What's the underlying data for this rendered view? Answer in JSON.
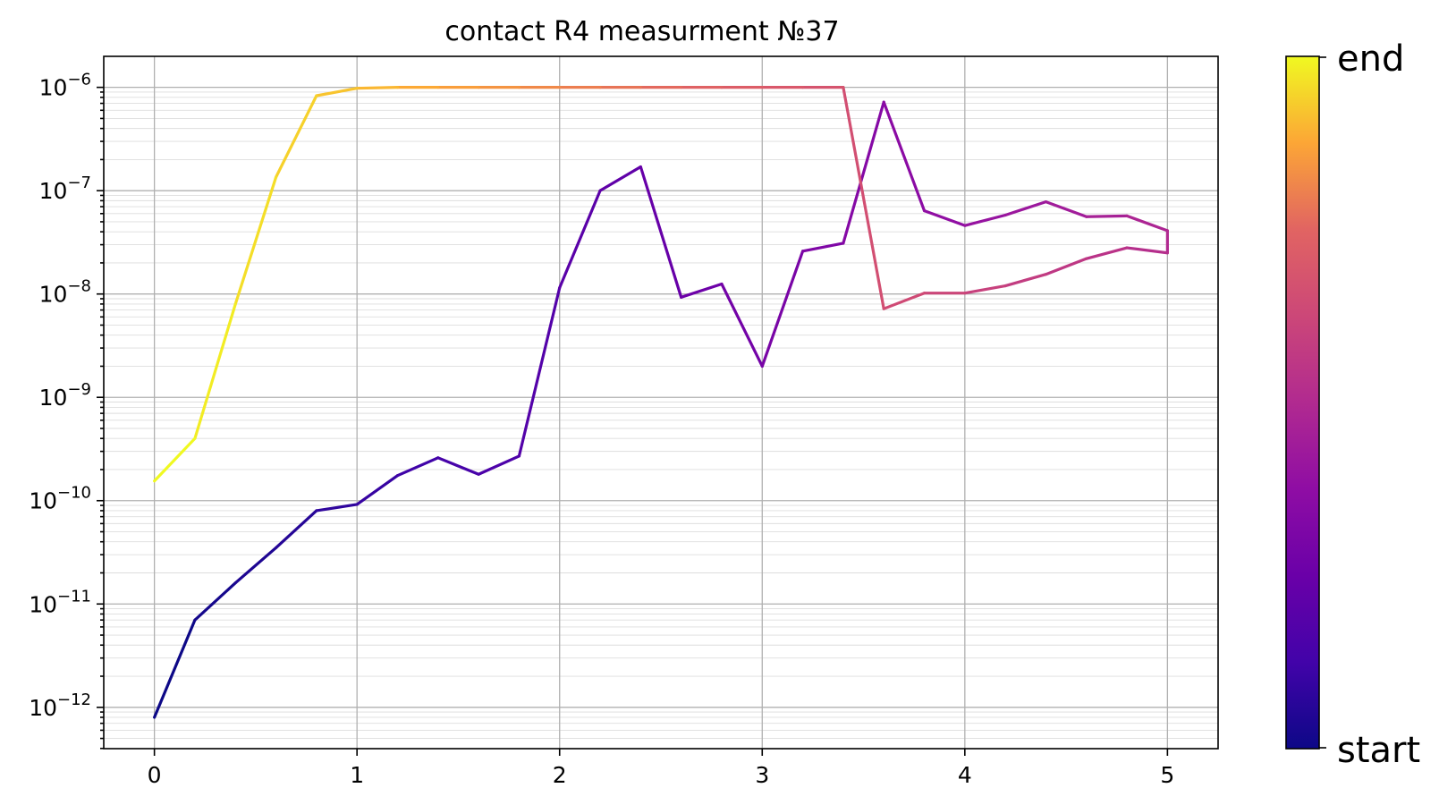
{
  "chart_data": {
    "type": "line",
    "title": "contact R4 measurment №37",
    "xlabel": "",
    "ylabel": "",
    "xlim": [
      -0.25,
      5.25
    ],
    "ylim_log10": [
      -12.4,
      -5.7
    ],
    "yscale": "log",
    "grid": "on (major and minor)",
    "colormap": "plasma",
    "x_ticks": [
      {
        "value": 0,
        "label": "0"
      },
      {
        "value": 1,
        "label": "1"
      },
      {
        "value": 2,
        "label": "2"
      },
      {
        "value": 3,
        "label": "3"
      },
      {
        "value": 4,
        "label": "4"
      },
      {
        "value": 5,
        "label": "5"
      }
    ],
    "y_ticks": [
      {
        "exp": -6,
        "base": "10",
        "sup": "−6"
      },
      {
        "exp": -7,
        "base": "10",
        "sup": "−7"
      },
      {
        "exp": -8,
        "base": "10",
        "sup": "−8"
      },
      {
        "exp": -9,
        "base": "10",
        "sup": "−9"
      },
      {
        "exp": -10,
        "base": "10",
        "sup": "−10"
      },
      {
        "exp": -11,
        "base": "10",
        "sup": "−11"
      },
      {
        "exp": -12,
        "base": "10",
        "sup": "−12"
      }
    ],
    "colorbar": {
      "top_label": "end",
      "bottom_label": "start"
    },
    "points": [
      [
        0.0,
        8e-13
      ],
      [
        0.2,
        7e-12
      ],
      [
        0.4,
        1.6e-11
      ],
      [
        0.6,
        3.5e-11
      ],
      [
        0.8,
        8e-11
      ],
      [
        1.0,
        9.2e-11
      ],
      [
        1.2,
        1.75e-10
      ],
      [
        1.4,
        2.6e-10
      ],
      [
        1.6,
        1.8e-10
      ],
      [
        1.8,
        2.7e-10
      ],
      [
        2.0,
        1.15e-08
      ],
      [
        2.2,
        1e-07
      ],
      [
        2.4,
        1.7e-07
      ],
      [
        2.6,
        9.3e-09
      ],
      [
        2.8,
        1.25e-08
      ],
      [
        3.0,
        2e-09
      ],
      [
        3.2,
        2.6e-08
      ],
      [
        3.4,
        3.1e-08
      ],
      [
        3.6,
        7.2e-07
      ],
      [
        3.8,
        6.4e-08
      ],
      [
        4.0,
        4.6e-08
      ],
      [
        4.2,
        5.8e-08
      ],
      [
        4.4,
        7.8e-08
      ],
      [
        4.6,
        5.6e-08
      ],
      [
        4.8,
        5.7e-08
      ],
      [
        5.0,
        4.1e-08
      ],
      [
        5.0,
        2.5e-08
      ],
      [
        4.8,
        2.8e-08
      ],
      [
        4.6,
        2.2e-08
      ],
      [
        4.4,
        1.55e-08
      ],
      [
        4.2,
        1.2e-08
      ],
      [
        4.0,
        1.02e-08
      ],
      [
        3.8,
        1.02e-08
      ],
      [
        3.6,
        7.2e-09
      ],
      [
        3.4,
        1e-06
      ],
      [
        3.2,
        1e-06
      ],
      [
        3.0,
        1e-06
      ],
      [
        2.8,
        1e-06
      ],
      [
        2.6,
        1e-06
      ],
      [
        2.4,
        1e-06
      ],
      [
        2.2,
        1e-06
      ],
      [
        2.0,
        1e-06
      ],
      [
        1.8,
        1e-06
      ],
      [
        1.6,
        1e-06
      ],
      [
        1.4,
        1e-06
      ],
      [
        1.2,
        1e-06
      ],
      [
        1.0,
        9.8e-07
      ],
      [
        0.8,
        8.3e-07
      ],
      [
        0.6,
        1.35e-07
      ],
      [
        0.4,
        8e-09
      ],
      [
        0.2,
        4e-10
      ],
      [
        0.0,
        1.55e-10
      ]
    ]
  }
}
